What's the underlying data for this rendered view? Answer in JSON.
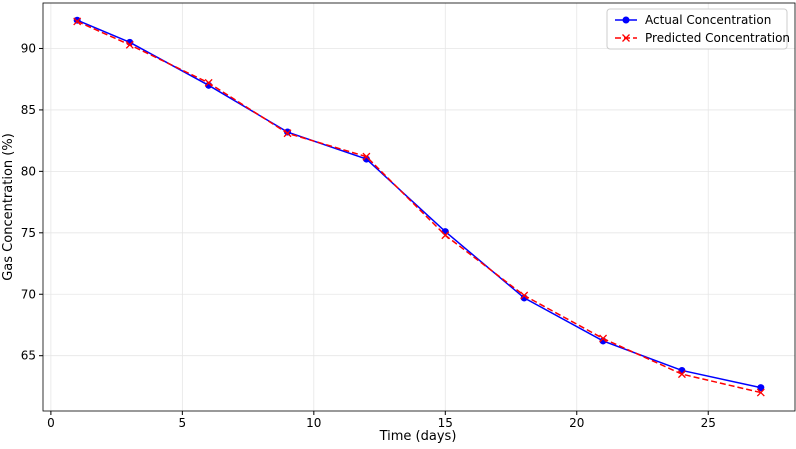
{
  "chart_data": {
    "type": "line",
    "x_label": "Time (days)",
    "y_label": "Gas Concentration (%)",
    "x": [
      1,
      3,
      6,
      9,
      12,
      15,
      18,
      21,
      24,
      27
    ],
    "series": [
      {
        "name": "Actual Concentration",
        "color": "#0000ff",
        "style": "solid",
        "marker": "circle",
        "values": [
          92.3,
          90.5,
          87.0,
          83.2,
          81.0,
          75.1,
          69.7,
          66.2,
          63.8,
          62.4
        ]
      },
      {
        "name": "Predicted Concentration",
        "color": "#ff0000",
        "style": "dashed",
        "marker": "x",
        "values": [
          92.2,
          90.3,
          87.2,
          83.1,
          81.2,
          74.8,
          69.9,
          66.4,
          63.5,
          62.0
        ]
      }
    ],
    "xlim": [
      -0.3,
      28.3
    ],
    "xticks": [
      0,
      5,
      10,
      15,
      20,
      25
    ],
    "ylim": [
      60.5,
      93.7
    ],
    "yticks": [
      65,
      70,
      75,
      80,
      85,
      90
    ],
    "grid": true,
    "legend": "upper right"
  }
}
